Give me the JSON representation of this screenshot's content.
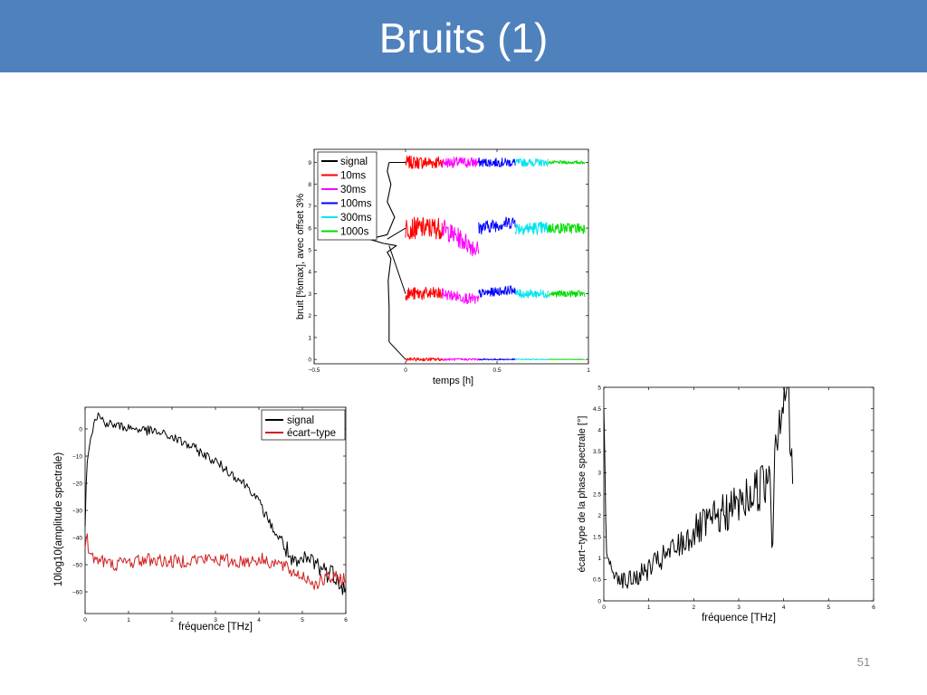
{
  "slide": {
    "title": "Bruits (1)",
    "page_number": "51",
    "title_bar_color": "#4f81bd"
  },
  "chart_data": [
    {
      "type": "line",
      "xlabel": "temps [h]",
      "ylabel": "bruit [%max], avec offset 3%",
      "xlim": [
        -0.5,
        1
      ],
      "ylim": [
        -0.2,
        9.6
      ],
      "xticks": [
        "−0.5",
        "0",
        "0.5",
        "1"
      ],
      "yticks": [
        "0",
        "1",
        "2",
        "3",
        "4",
        "5",
        "6",
        "7",
        "8",
        "9"
      ],
      "grid": false,
      "legend_position": "top-left",
      "legend": [
        {
          "label": "signal",
          "color": "#000000"
        },
        {
          "label": "10ms",
          "color": "#ff0000"
        },
        {
          "label": "30ms",
          "color": "#ff00ff"
        },
        {
          "label": "100ms",
          "color": "#0000ff"
        },
        {
          "label": "300ms",
          "color": "#00e5ee"
        },
        {
          "label": "1000s",
          "color": "#00dd00"
        }
      ],
      "signal": {
        "x": [
          -0.09,
          -0.09,
          -0.095,
          -0.08,
          -0.1,
          -0.05,
          -0.12,
          -0.2,
          -0.1,
          -0.06,
          -0.1,
          -0.08,
          -0.1,
          -0.09
        ],
        "y": [
          0.8,
          2.4,
          3.6,
          4.6,
          4.9,
          5.2,
          5.3,
          5.5,
          5.7,
          6.5,
          7.2,
          8.0,
          8.6,
          9.0
        ]
      },
      "segments": [
        {
          "name": "10ms",
          "color": "#ff0000",
          "x": [
            0,
            0.2
          ]
        },
        {
          "name": "30ms",
          "color": "#ff00ff",
          "x": [
            0.2,
            0.4
          ]
        },
        {
          "name": "100ms",
          "color": "#0000ff",
          "x": [
            0.4,
            0.6
          ]
        },
        {
          "name": "300ms",
          "color": "#00e5ee",
          "x": [
            0.6,
            0.78
          ]
        },
        {
          "name": "1000s",
          "color": "#00dd00",
          "x": [
            0.78,
            0.98
          ]
        }
      ],
      "traces": [
        {
          "level": 9,
          "amplitude": [
            0.6,
            0.5,
            0.4,
            0.35,
            0.15
          ],
          "drift": [
            0,
            0,
            0,
            0,
            0
          ]
        },
        {
          "level": 6,
          "amplitude": [
            1.0,
            0.9,
            0.6,
            0.6,
            0.5
          ],
          "drift": [
            0,
            -1.0,
            0.3,
            0,
            0
          ]
        },
        {
          "level": 3,
          "amplitude": [
            0.6,
            0.5,
            0.4,
            0.4,
            0.3
          ],
          "drift": [
            0,
            -0.3,
            0.2,
            0,
            0
          ]
        },
        {
          "level": 0,
          "amplitude": [
            0.15,
            0.1,
            0.06,
            0.04,
            0.02
          ],
          "drift": [
            0,
            0,
            0,
            0,
            0
          ]
        }
      ]
    },
    {
      "type": "line",
      "xlabel": "fréquence [THz]",
      "ylabel": "10log10(amplitude spectrale)",
      "xlim": [
        0,
        6
      ],
      "ylim": [
        -68,
        8
      ],
      "xticks": [
        "0",
        "1",
        "2",
        "3",
        "4",
        "5",
        "6"
      ],
      "yticks": [
        "0",
        "−10",
        "−20",
        "−30",
        "−40",
        "−50",
        "−60"
      ],
      "grid": false,
      "legend_position": "top-right",
      "series": [
        {
          "name": "signal",
          "color": "#000000",
          "x": [
            0,
            0.04,
            0.1,
            0.2,
            0.3,
            0.5,
            0.8,
            1.2,
            1.6,
            2.0,
            2.5,
            3.0,
            3.5,
            3.8,
            4.0,
            4.2,
            4.4,
            4.6,
            4.8,
            5.0,
            5.2,
            5.5,
            5.8,
            6.0
          ],
          "y": [
            -35,
            -12,
            -5,
            2,
            5,
            2,
            1,
            0,
            -1,
            -3,
            -7,
            -12,
            -18,
            -22,
            -27,
            -33,
            -39,
            -43,
            -51,
            -49,
            -48,
            -52,
            -54,
            -60
          ]
        },
        {
          "name": "écart−type",
          "color": "#d02020",
          "x": [
            0,
            0.05,
            0.1,
            0.3,
            0.6,
            1.0,
            1.5,
            2.0,
            2.5,
            3.0,
            3.5,
            4.0,
            4.3,
            4.5,
            4.8,
            5.0,
            5.3,
            5.6,
            6.0
          ],
          "y": [
            -42,
            -40,
            -47,
            -48,
            -50,
            -49,
            -48,
            -49,
            -48,
            -48,
            -49,
            -48,
            -49,
            -50,
            -53,
            -54,
            -57,
            -55,
            -55
          ]
        }
      ]
    },
    {
      "type": "line",
      "xlabel": "fréquence [THz]",
      "ylabel": "écart−type de la phase spectrale [°]",
      "xlim": [
        0,
        6
      ],
      "ylim": [
        0,
        5
      ],
      "xticks": [
        "0",
        "1",
        "2",
        "3",
        "4",
        "5",
        "6"
      ],
      "yticks": [
        "0",
        "0.5",
        "1",
        "1.5",
        "2",
        "2.5",
        "3",
        "3.5",
        "4",
        "4.5",
        "5"
      ],
      "grid": false,
      "series": [
        {
          "name": "",
          "color": "#000000",
          "x": [
            0,
            0.03,
            0.05,
            0.1,
            0.2,
            0.3,
            0.4,
            0.5,
            0.6,
            0.8,
            1.0,
            1.2,
            1.5,
            1.8,
            2.0,
            2.3,
            2.6,
            2.9,
            3.2,
            3.4,
            3.6,
            3.7,
            3.75,
            3.8,
            3.85,
            3.9,
            4.0,
            4.1,
            4.15,
            4.2
          ],
          "y": [
            4.5,
            3.0,
            1.2,
            0.9,
            0.7,
            0.6,
            0.5,
            0.45,
            0.5,
            0.6,
            0.75,
            0.9,
            1.15,
            1.4,
            1.6,
            1.8,
            2.0,
            2.2,
            2.4,
            2.6,
            2.8,
            3.2,
            1.2,
            3.6,
            4.0,
            4.3,
            4.8,
            5.2,
            3.5,
            2.6
          ]
        }
      ]
    }
  ]
}
